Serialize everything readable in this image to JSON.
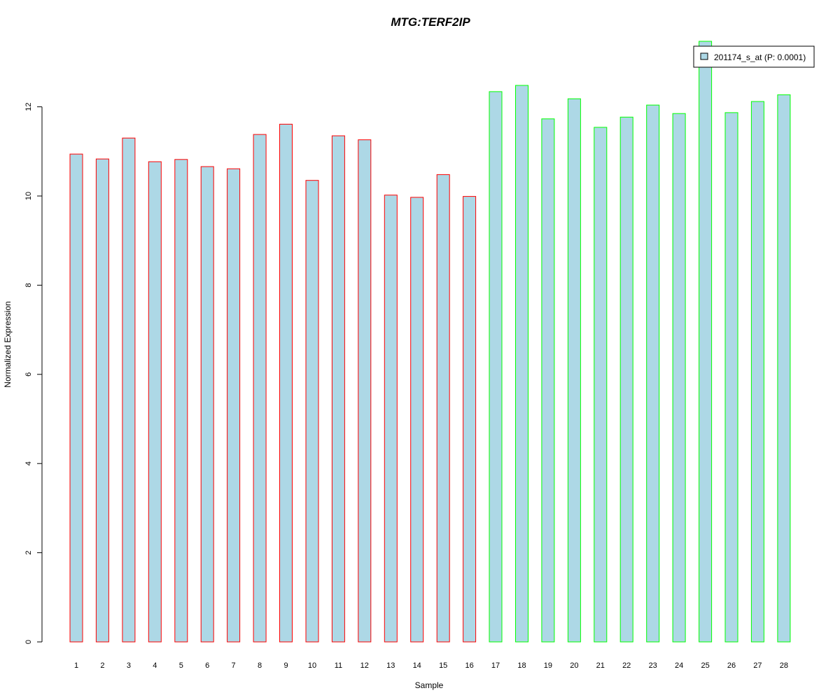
{
  "chart_data": {
    "type": "bar",
    "title": "MTG:TERF2IP",
    "xlabel": "Sample",
    "ylabel": "Normalized Expression",
    "ylim": [
      0,
      13.5
    ],
    "yticks": [
      0,
      2,
      4,
      6,
      8,
      10,
      12
    ],
    "grid": false,
    "legend": {
      "placement": "top-right",
      "entries": [
        "201174_s_at (P: 0.0001)"
      ]
    },
    "categories": [
      "1",
      "2",
      "3",
      "4",
      "5",
      "6",
      "7",
      "8",
      "9",
      "10",
      "11",
      "12",
      "13",
      "14",
      "15",
      "16",
      "17",
      "18",
      "19",
      "20",
      "21",
      "22",
      "23",
      "24",
      "25",
      "26",
      "27",
      "28"
    ],
    "series": [
      {
        "name": "201174_s_at (P: 0.0001)",
        "fill_color": "#add8e6",
        "values": [
          10.94,
          10.83,
          11.3,
          10.77,
          10.82,
          10.66,
          10.61,
          11.38,
          11.61,
          10.35,
          11.35,
          11.26,
          10.02,
          9.97,
          10.48,
          9.99,
          12.34,
          12.48,
          11.73,
          12.18,
          11.54,
          11.77,
          12.04,
          11.85,
          13.47,
          11.87,
          12.12,
          12.27
        ],
        "outline_colors": [
          "#ff0000",
          "#ff0000",
          "#ff0000",
          "#ff0000",
          "#ff0000",
          "#ff0000",
          "#ff0000",
          "#ff0000",
          "#ff0000",
          "#ff0000",
          "#ff0000",
          "#ff0000",
          "#ff0000",
          "#ff0000",
          "#ff0000",
          "#ff0000",
          "#00ff00",
          "#00ff00",
          "#00ff00",
          "#00ff00",
          "#00ff00",
          "#00ff00",
          "#00ff00",
          "#00ff00",
          "#00ff00",
          "#00ff00",
          "#00ff00",
          "#00ff00"
        ]
      }
    ],
    "colors": {
      "title": "#0000cc",
      "axis": "#000000"
    }
  }
}
